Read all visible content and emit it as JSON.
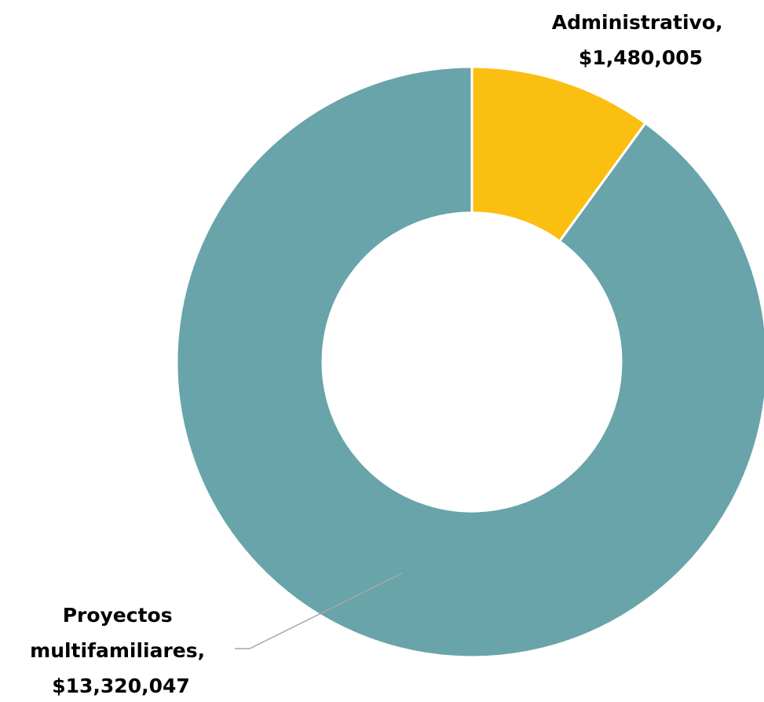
{
  "chart_data": {
    "type": "pie",
    "donut": true,
    "title": "",
    "slices": [
      {
        "label": "Administrativo",
        "value": 1480005,
        "value_text": "$1,480,005",
        "color": "#FBBF12"
      },
      {
        "label": "Proyectos multifamiliares",
        "value": 13320047,
        "value_text": "$13,320,047",
        "color": "#68A4AA"
      }
    ],
    "legend": "none",
    "data_labels": "category and value, outside"
  },
  "labels": {
    "administrativo": {
      "line1": "Administrativo,",
      "line2": "$1,480,005"
    },
    "proyectos": {
      "line1": "Proyectos",
      "line2": "multifamiliares,",
      "line3": "$13,320,047"
    }
  }
}
